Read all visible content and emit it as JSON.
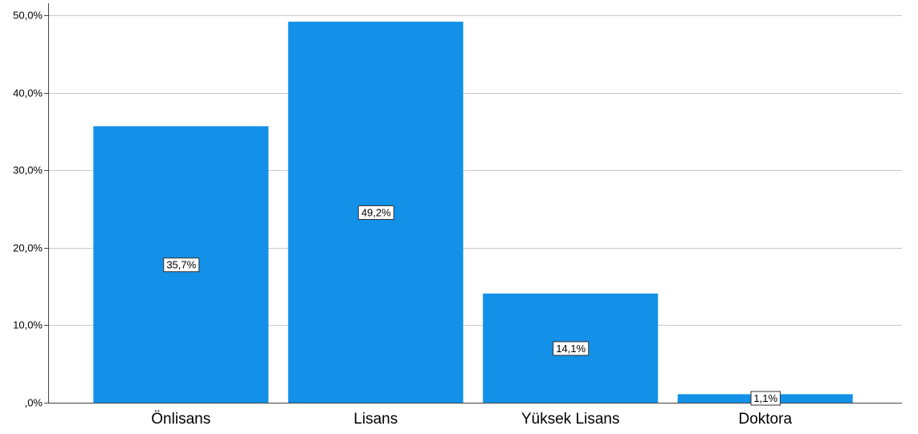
{
  "chart_data": {
    "type": "bar",
    "categories": [
      "Önlisans",
      "Lisans",
      "Yüksek Lisans",
      "Doktora"
    ],
    "values": [
      35.7,
      49.2,
      14.1,
      1.1
    ],
    "data_labels": [
      "35,7%",
      "49,2%",
      "14,1%",
      "1,1%"
    ],
    "ylim": [
      0,
      52
    ],
    "yticks": [
      0,
      10,
      20,
      30,
      40,
      50
    ],
    "ytick_labels": [
      ",0%",
      "10,0%",
      "20,0%",
      "30,0%",
      "40,0%",
      "50,0%"
    ],
    "title": "",
    "xlabel": "",
    "ylabel": "",
    "grid": "horizontal",
    "bar_color": "#1391e8",
    "grid_color": "#c8c8c8"
  }
}
